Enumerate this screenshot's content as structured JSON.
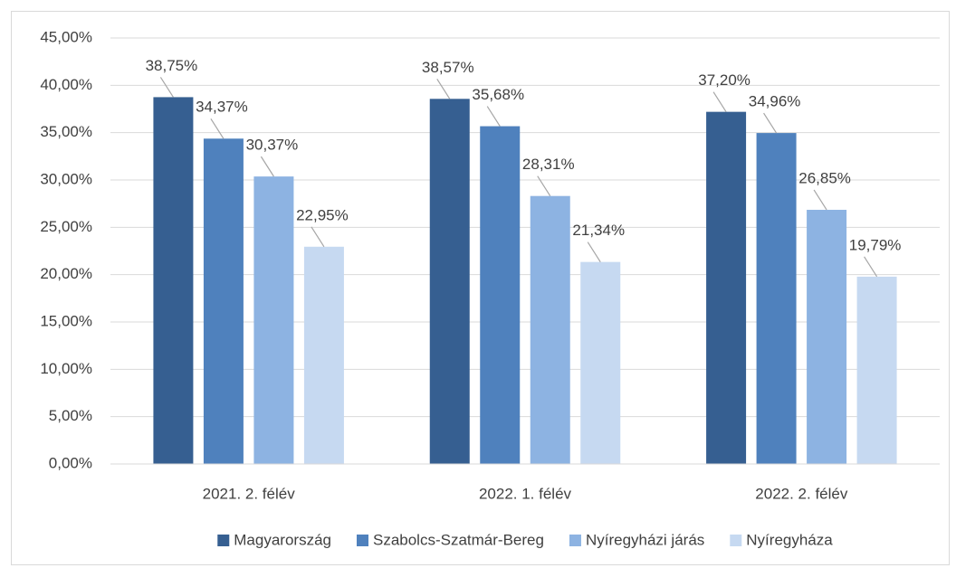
{
  "chart_data": {
    "type": "bar",
    "categories": [
      "2021. 2. félév",
      "2022. 1. félév",
      "2022. 2. félév"
    ],
    "series": [
      {
        "name": "Magyarország",
        "color": "#365f91",
        "values": [
          38.75,
          38.57,
          37.2
        ],
        "value_labels": [
          "38,75%",
          "38,57%",
          "37,20%"
        ]
      },
      {
        "name": "Szabolcs-Szatmár-Bereg",
        "color": "#4f81bd",
        "values": [
          34.37,
          35.68,
          34.96
        ],
        "value_labels": [
          "34,37%",
          "35,68%",
          "34,96%"
        ]
      },
      {
        "name": "Nyíregyházi járás",
        "color": "#8db3e2",
        "values": [
          30.37,
          28.31,
          26.85
        ],
        "value_labels": [
          "30,37%",
          "28,31%",
          "26,85%"
        ]
      },
      {
        "name": "Nyíregyháza",
        "color": "#c6d9f1",
        "values": [
          22.95,
          21.34,
          19.79
        ],
        "value_labels": [
          "22,95%",
          "21,34%",
          "19,79%"
        ]
      }
    ],
    "ylim": [
      0,
      45
    ],
    "yticks": [
      {
        "value": 0,
        "label": "0,00%"
      },
      {
        "value": 5,
        "label": "5,00%"
      },
      {
        "value": 10,
        "label": "10,00%"
      },
      {
        "value": 15,
        "label": "15,00%"
      },
      {
        "value": 20,
        "label": "20,00%"
      },
      {
        "value": 25,
        "label": "25,00%"
      },
      {
        "value": 30,
        "label": "30,00%"
      },
      {
        "value": 35,
        "label": "35,00%"
      },
      {
        "value": 40,
        "label": "40,00%"
      },
      {
        "value": 45,
        "label": "45,00%"
      }
    ],
    "grid": true,
    "legend": "bottom"
  }
}
